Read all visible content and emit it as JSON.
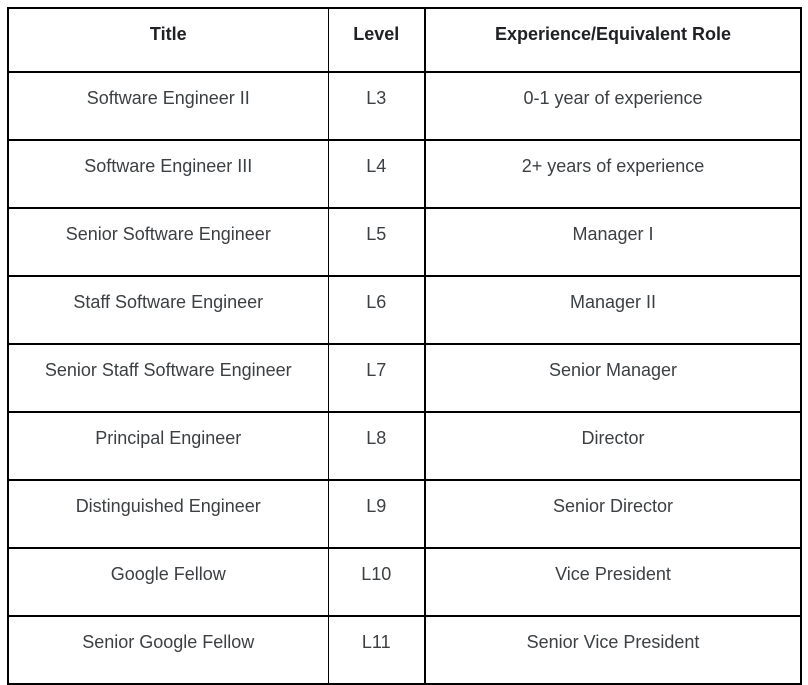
{
  "table": {
    "columns": [
      "Title",
      "Level",
      "Experience/Equivalent Role"
    ],
    "rows": [
      {
        "title": "Software Engineer II",
        "level": "L3",
        "role": "0-1 year of experience"
      },
      {
        "title": "Software Engineer III",
        "level": "L4",
        "role": "2+ years of experience"
      },
      {
        "title": "Senior Software Engineer",
        "level": "L5",
        "role": "Manager I"
      },
      {
        "title": "Staff Software Engineer",
        "level": "L6",
        "role": "Manager II"
      },
      {
        "title": "Senior Staff Software Engineer",
        "level": "L7",
        "role": "Senior Manager"
      },
      {
        "title": "Principal Engineer",
        "level": "L8",
        "role": "Director"
      },
      {
        "title": "Distinguished Engineer",
        "level": "L9",
        "role": "Senior Director"
      },
      {
        "title": "Google Fellow",
        "level": "L10",
        "role": "Vice President"
      },
      {
        "title": "Senior Google Fellow",
        "level": "L11",
        "role": "Senior Vice President"
      }
    ]
  },
  "colors": {
    "border": "#000000",
    "header_text": "#202124",
    "body_text": "#3c4043",
    "background": "#ffffff"
  }
}
